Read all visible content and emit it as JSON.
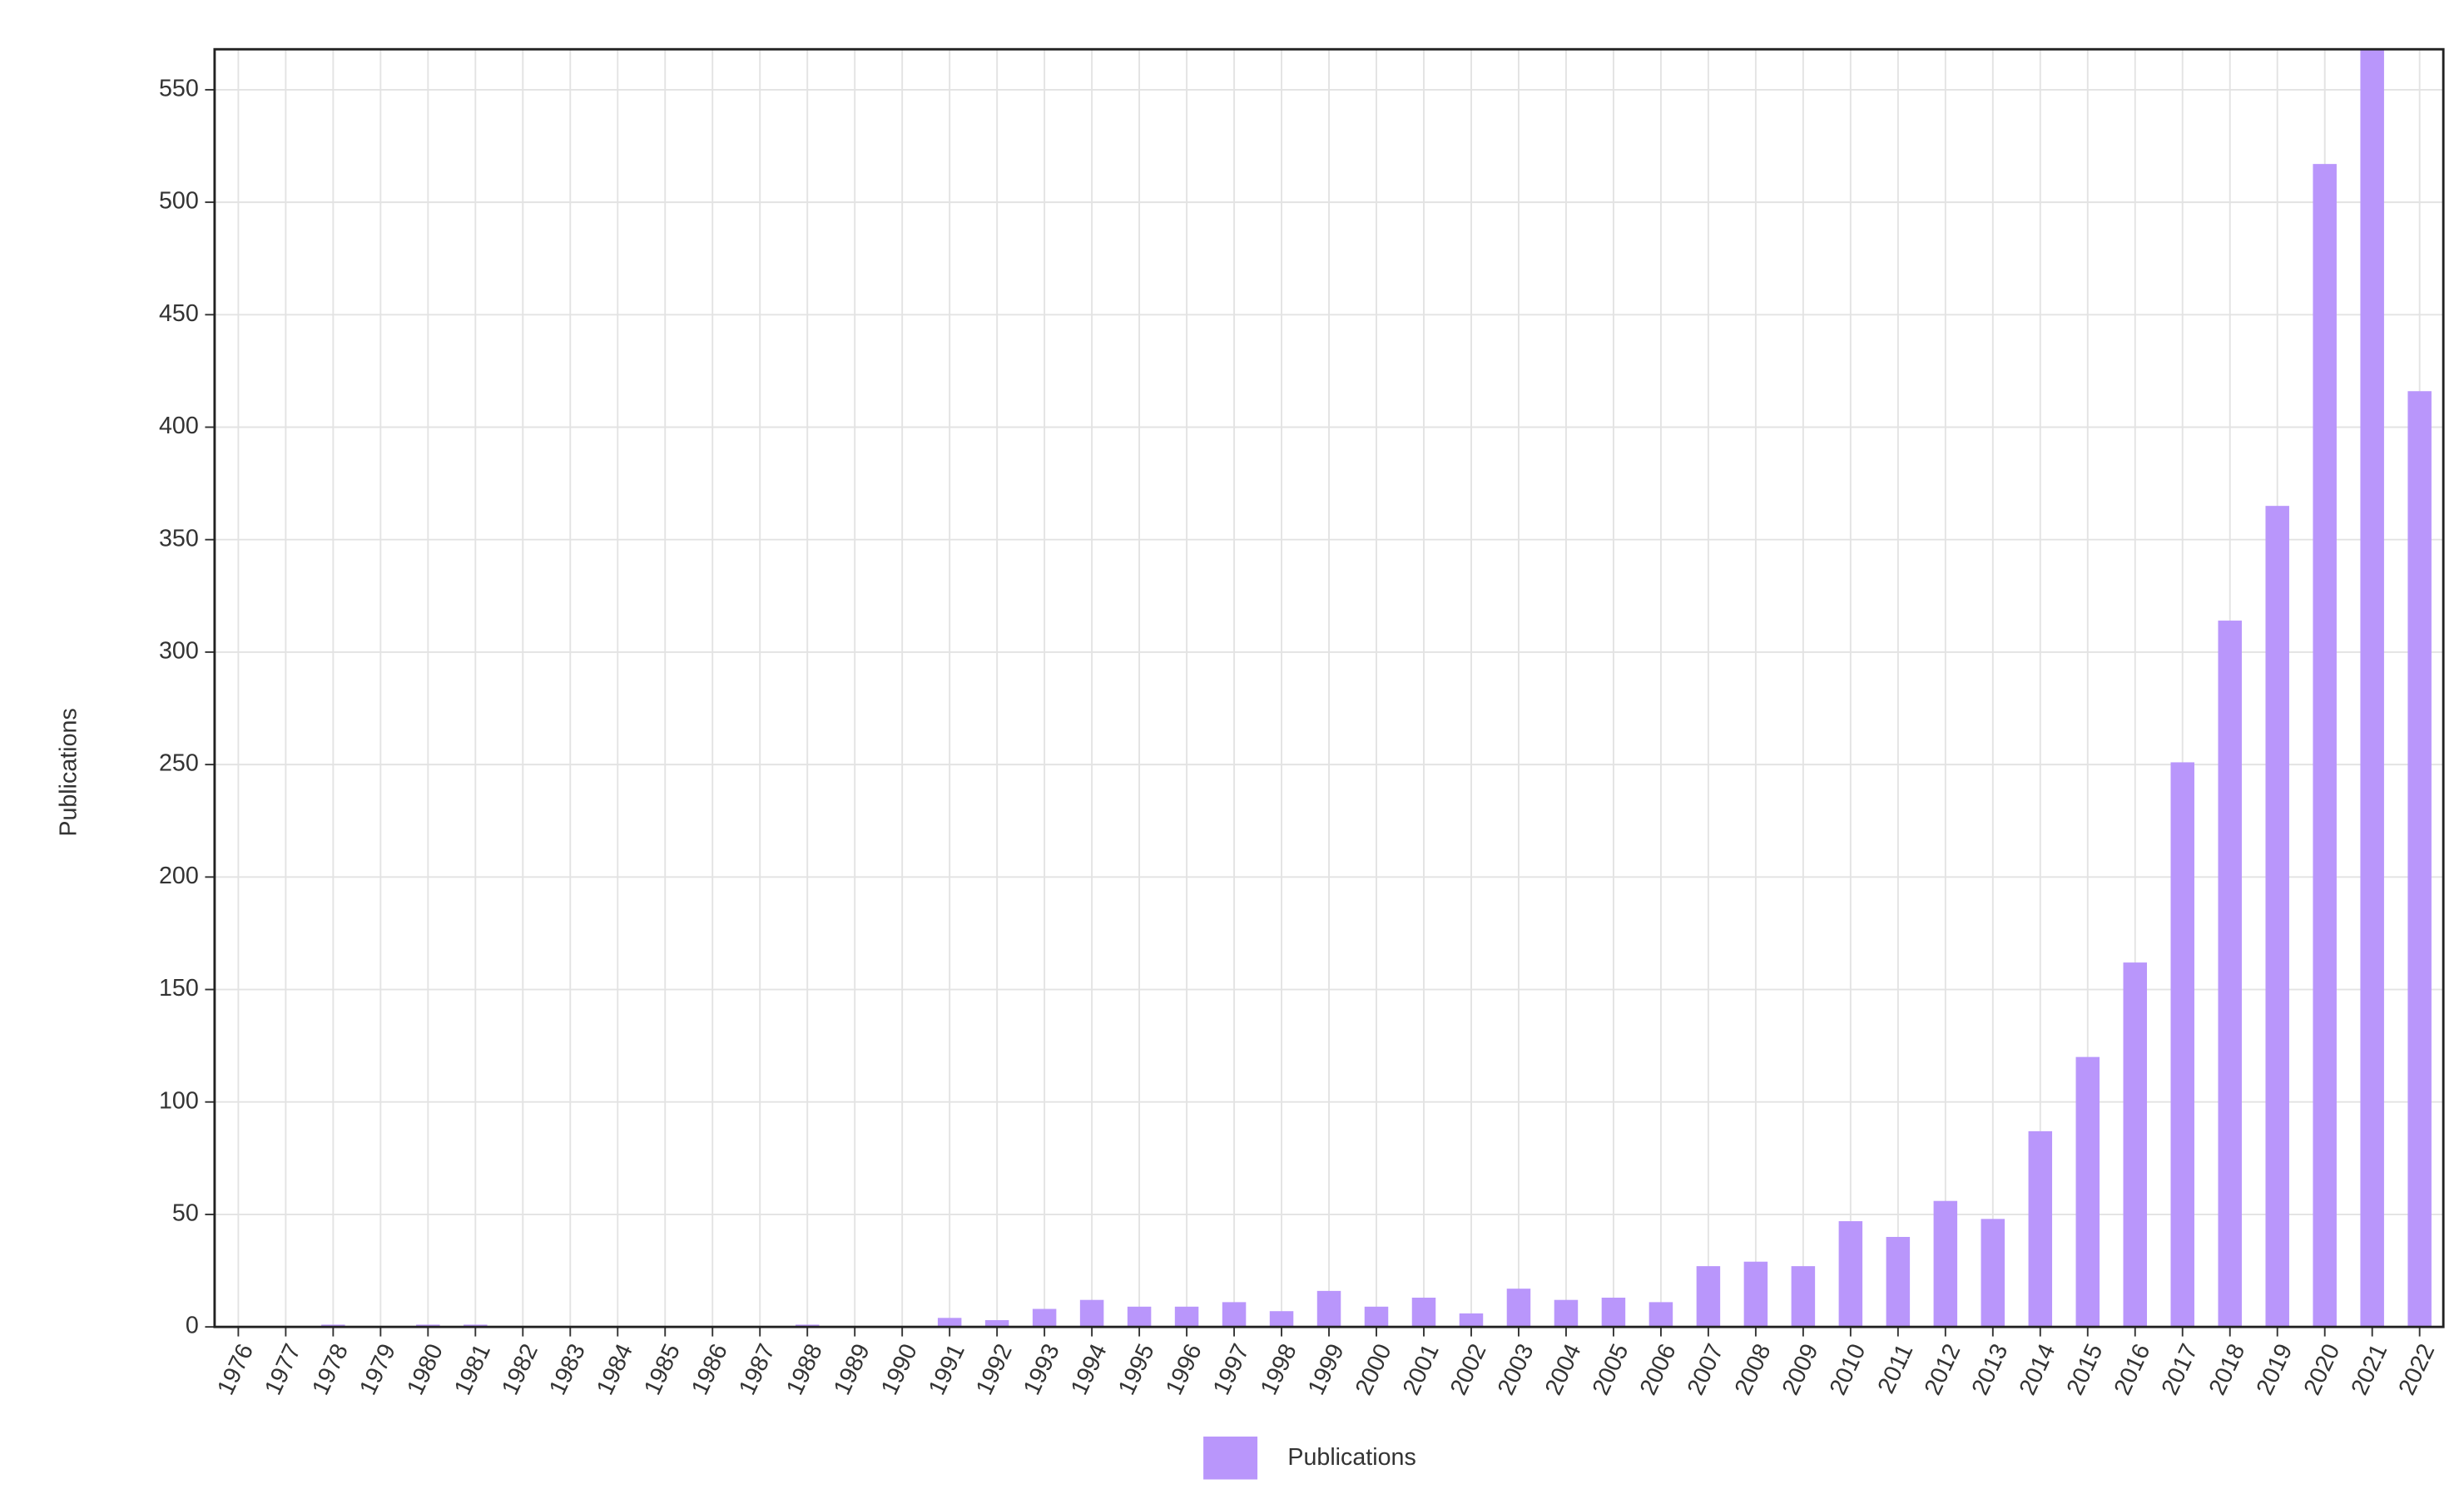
{
  "chart_data": {
    "type": "bar",
    "y_label": "Publications",
    "categories": [
      "1976",
      "1977",
      "1978",
      "1979",
      "1980",
      "1981",
      "1982",
      "1983",
      "1984",
      "1985",
      "1986",
      "1987",
      "1988",
      "1989",
      "1990",
      "1991",
      "1992",
      "1993",
      "1994",
      "1995",
      "1996",
      "1997",
      "1998",
      "1999",
      "2000",
      "2001",
      "2002",
      "2003",
      "2004",
      "2005",
      "2006",
      "2007",
      "2008",
      "2009",
      "2010",
      "2011",
      "2012",
      "2013",
      "2014",
      "2015",
      "2016",
      "2017",
      "2018",
      "2019",
      "2020",
      "2021",
      "2022"
    ],
    "series": [
      {
        "name": "Publications",
        "color": "#b996fb",
        "values": [
          0,
          0,
          1,
          0,
          1,
          1,
          0,
          0,
          0,
          0,
          0,
          0,
          1,
          0,
          0,
          4,
          3,
          8,
          12,
          9,
          9,
          11,
          7,
          16,
          9,
          13,
          6,
          17,
          12,
          13,
          11,
          27,
          29,
          27,
          47,
          40,
          56,
          48,
          87,
          120,
          162,
          251,
          314,
          365,
          517,
          568,
          416
        ]
      }
    ],
    "ylim": [
      0,
      568
    ],
    "yticks": [
      0,
      50,
      100,
      150,
      200,
      250,
      300,
      350,
      400,
      450,
      500,
      550
    ],
    "grid": true
  }
}
